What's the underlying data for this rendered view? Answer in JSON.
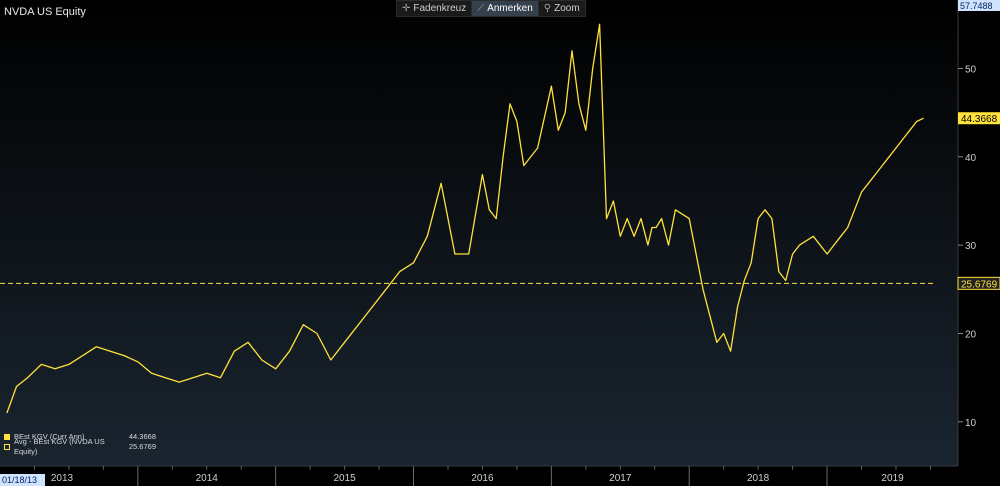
{
  "app_title": "NVDA US Equity",
  "toolbar": {
    "items": [
      {
        "label": "Fadenkreuz",
        "icon": "crosshair-icon",
        "active": false
      },
      {
        "label": "Anmerken",
        "icon": "pencil-icon",
        "active": true
      },
      {
        "label": "Zoom",
        "icon": "magnifier-icon",
        "active": false
      }
    ]
  },
  "colors": {
    "background": "#000000",
    "line": "#ffe13c",
    "grid": "#4a4a4a",
    "text": "#cfcfcf",
    "panel": "#0f1418"
  },
  "chart_data": {
    "type": "line",
    "title": "NVDA US Equity",
    "xlabel": "",
    "ylabel": "",
    "ylim": [
      5,
      57.7488
    ],
    "yticks": [
      10,
      20,
      30,
      40,
      50
    ],
    "top_label": "57.7488",
    "x_axis": {
      "start_label": "01/18/13",
      "year_labels": [
        "2013",
        "2014",
        "2015",
        "2016",
        "2017",
        "2018",
        "2019"
      ]
    },
    "grid": false,
    "legend_position": "bottom-left",
    "series": [
      {
        "name": "BEst KGV (Curr Ann)",
        "last_value_label": "44.3668",
        "style": "solid",
        "x": [
          2013.05,
          2013.12,
          2013.2,
          2013.3,
          2013.4,
          2013.5,
          2013.6,
          2013.7,
          2013.8,
          2013.9,
          2014.0,
          2014.1,
          2014.2,
          2014.3,
          2014.4,
          2014.5,
          2014.6,
          2014.7,
          2014.8,
          2014.9,
          2015.0,
          2015.1,
          2015.2,
          2015.3,
          2015.4,
          2015.5,
          2015.6,
          2015.7,
          2015.8,
          2015.9,
          2016.0,
          2016.1,
          2016.2,
          2016.3,
          2016.4,
          2016.5,
          2016.55,
          2016.6,
          2016.65,
          2016.7,
          2016.75,
          2016.8,
          2016.9,
          2017.0,
          2017.05,
          2017.1,
          2017.15,
          2017.2,
          2017.25,
          2017.3,
          2017.35,
          2017.4,
          2017.45,
          2017.5,
          2017.55,
          2017.6,
          2017.65,
          2017.7,
          2017.73,
          2017.76,
          2017.8,
          2017.85,
          2017.9,
          2018.0,
          2018.1,
          2018.2,
          2018.25,
          2018.3,
          2018.35,
          2018.4,
          2018.45,
          2018.5,
          2018.55,
          2018.6,
          2018.65,
          2018.7,
          2018.75,
          2018.8,
          2018.9,
          2019.0,
          2019.05,
          2019.1,
          2019.15,
          2019.2,
          2019.25,
          2019.3,
          2019.35,
          2019.4,
          2019.45,
          2019.5,
          2019.55,
          2019.6,
          2019.65,
          2019.7
        ],
        "y": [
          11,
          14,
          15,
          16.5,
          16,
          16.5,
          17.5,
          18.5,
          18,
          17.5,
          16.8,
          15.5,
          15,
          14.5,
          15,
          15.5,
          15,
          18,
          19,
          17,
          16,
          18,
          21,
          20,
          17,
          19,
          21,
          23,
          25,
          27,
          28,
          31,
          37,
          29,
          29,
          38,
          34,
          33,
          40,
          46,
          44,
          39,
          41,
          48,
          43,
          45,
          52,
          46,
          43,
          50,
          55,
          33,
          35,
          31,
          33,
          31,
          33,
          30,
          32,
          32,
          33,
          30,
          34,
          33,
          25,
          19,
          20,
          18,
          23,
          26,
          28,
          33,
          34,
          33,
          27,
          26,
          29,
          30,
          31,
          29,
          30,
          31,
          32,
          34,
          36,
          37,
          38,
          39,
          40,
          41,
          42,
          43,
          44,
          44.3668
        ]
      },
      {
        "name": "Avg - BEst KGV (NVDA US Equity)",
        "last_value_label": "25.6769",
        "style": "dashed",
        "value": 25.6769
      }
    ]
  }
}
